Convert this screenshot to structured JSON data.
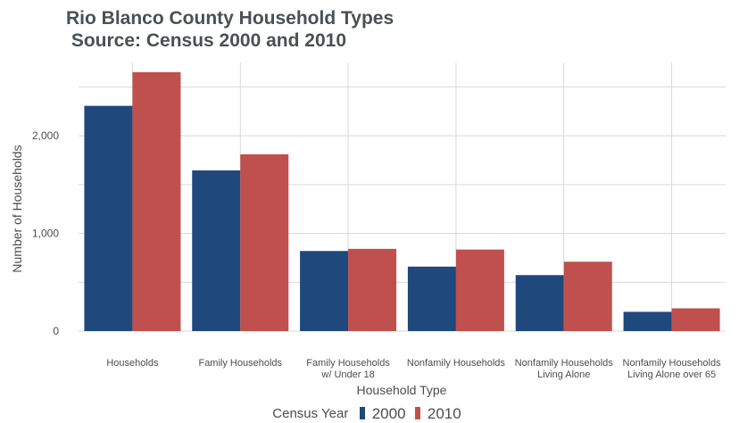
{
  "chart_data": {
    "type": "bar",
    "title": "Rio Blanco County Household Types",
    "subtitle": "Source: Census 2000 and 2010",
    "xlabel": "Household Type",
    "ylabel": "Number of Households",
    "categories": [
      [
        "Households"
      ],
      [
        "Family Households"
      ],
      [
        "Family Households",
        "w/ Under 18"
      ],
      [
        "Nonfamily Households"
      ],
      [
        "Nonfamily Households",
        "Living Alone"
      ],
      [
        "Nonfamily Households",
        "Living Alone over 65"
      ]
    ],
    "series": [
      {
        "name": "2000",
        "color": "#1f497d",
        "values": [
          2306,
          1645,
          820,
          660,
          573,
          197
        ]
      },
      {
        "name": "2010",
        "color": "#c0504d",
        "values": [
          2651,
          1810,
          842,
          835,
          710,
          233
        ]
      }
    ],
    "ylim": [
      0,
      2750
    ],
    "yticks": [
      0,
      1000,
      2000
    ],
    "ytick_labels": [
      "0",
      "1,000",
      "2,000"
    ],
    "grid": true,
    "legend": {
      "title": "Census Year",
      "placement": "bottom",
      "entries": [
        "2000",
        "2010"
      ]
    }
  }
}
